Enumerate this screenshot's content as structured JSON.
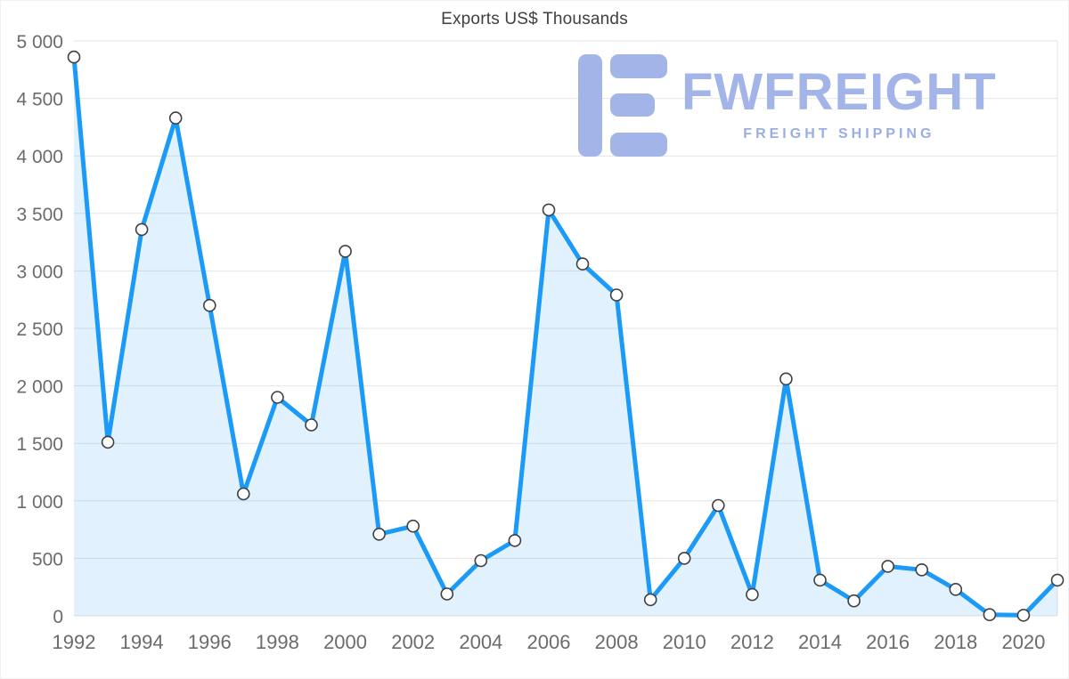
{
  "title": "Exports US$ Thousands",
  "logo": {
    "name": "FWFREIGHT",
    "tagline": "FREIGHT SHIPPING",
    "color": "#a3b5e8",
    "tagline_color": "#9bade3"
  },
  "chart_data": {
    "type": "area",
    "title": "Exports US$ Thousands",
    "xlabel": "",
    "ylabel": "",
    "x": [
      1992,
      1993,
      1994,
      1995,
      1996,
      1997,
      1998,
      1999,
      2000,
      2001,
      2002,
      2003,
      2004,
      2005,
      2006,
      2007,
      2008,
      2009,
      2010,
      2011,
      2012,
      2013,
      2014,
      2015,
      2016,
      2017,
      2018,
      2019,
      2020,
      2021
    ],
    "values": [
      4860,
      1510,
      3360,
      4330,
      2700,
      1060,
      1900,
      1660,
      3170,
      710,
      780,
      190,
      480,
      655,
      3530,
      3060,
      2790,
      140,
      500,
      960,
      185,
      2060,
      310,
      130,
      430,
      400,
      230,
      10,
      5,
      310
    ],
    "ylim": [
      0,
      5000
    ],
    "ytick_step": 500,
    "xtick_step": 2,
    "grid": "horizontal",
    "legend": "none",
    "line_color": "#1b9af7",
    "area_color": "#1b9af7",
    "area_opacity": 0.13,
    "marker_fill": "#ffffff",
    "marker_stroke": "#3f3f3f",
    "grid_color": "#e4e4e4",
    "tick_color": "#6b6b6b"
  }
}
